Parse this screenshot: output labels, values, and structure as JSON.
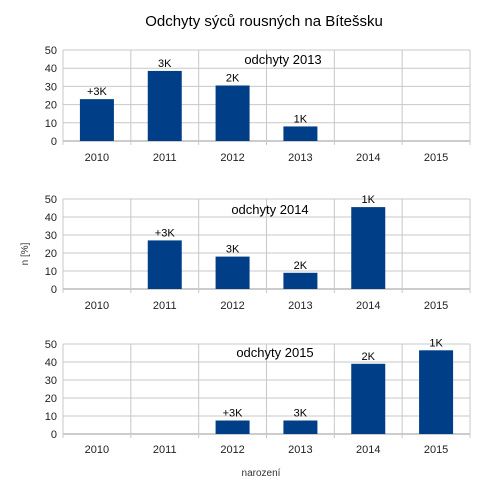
{
  "title": "Odchyty sýců rousných na Bítešsku",
  "chart_data": {
    "type": "bar",
    "title": "Odchyty sýců rousných na Bítešsku",
    "xlabel": "narození",
    "ylabel": "n [%]",
    "categories": [
      "2010",
      "2011",
      "2012",
      "2013",
      "2014",
      "2015"
    ],
    "ylim": [
      0,
      50
    ],
    "yticks": [
      0,
      10,
      20,
      30,
      40,
      50
    ],
    "grid": true,
    "bar_color": "#003F87",
    "panels": [
      {
        "name": "odchyty 2013",
        "values": [
          23,
          38.5,
          30.5,
          8,
          0,
          0
        ],
        "labels": [
          "+3K",
          "3K",
          "2K",
          "1K",
          "",
          ""
        ]
      },
      {
        "name": "odchyty 2014",
        "values": [
          0,
          27,
          18,
          9,
          45.5,
          0
        ],
        "labels": [
          "",
          "+3K",
          "3K",
          "2K",
          "1K",
          ""
        ]
      },
      {
        "name": "odchyty 2015",
        "values": [
          0,
          0,
          7.5,
          7.5,
          39,
          46.5
        ],
        "labels": [
          "",
          "",
          "+3K",
          "3K",
          "2K",
          "1K"
        ]
      }
    ]
  }
}
